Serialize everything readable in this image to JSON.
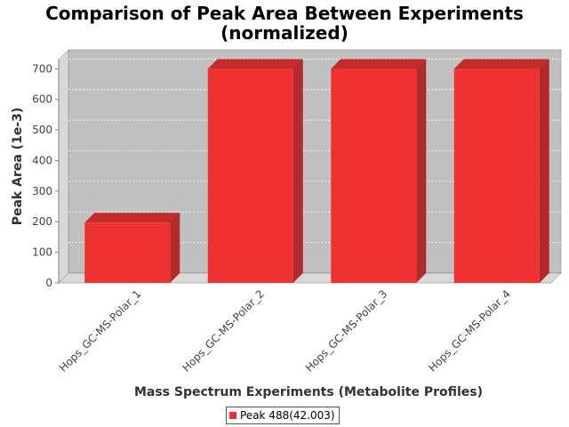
{
  "chart_data": {
    "type": "bar",
    "title_lines": [
      "Comparison of Peak Area Between Experiments",
      "(normalized)"
    ],
    "xlabel": "Mass Spectrum Experiments (Metabolite Profiles)",
    "ylabel": "Peak Area (1e-3)",
    "categories": [
      "Hops_GC-MS-Polar_1",
      "Hops_GC-MS-Polar_2",
      "Hops_GC-MS-Polar_3",
      "Hops_GC-MS-Polar_4"
    ],
    "series": [
      {
        "name": "Peak 488(42.003)",
        "values": [
          197,
          700,
          700,
          700
        ],
        "color": "#ef3131"
      }
    ],
    "ylim": [
      0,
      730
    ],
    "yticks": [
      0,
      100,
      200,
      300,
      400,
      500,
      600,
      700
    ],
    "grid": true,
    "legend_position": "bottom-center",
    "style": "3d",
    "plot_background": "#c0c0c0"
  }
}
